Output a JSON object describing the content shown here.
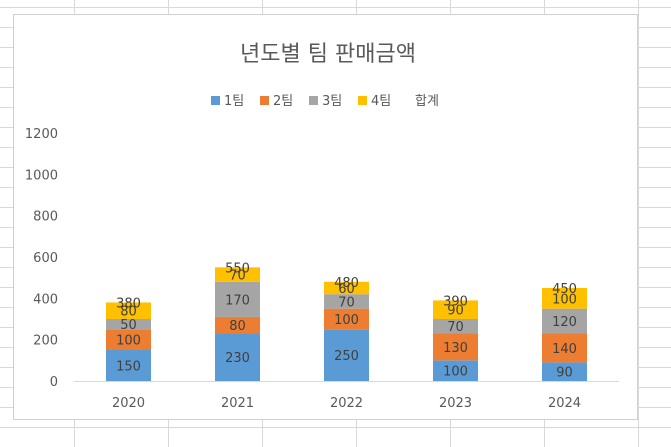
{
  "chart_data": {
    "type": "bar",
    "stacked": true,
    "title": "년도별 팀 판매금액",
    "categories": [
      "2020",
      "2021",
      "2022",
      "2023",
      "2024"
    ],
    "series": [
      {
        "name": "1팀",
        "color": "#5b9bd5",
        "values": [
          150,
          230,
          250,
          100,
          90
        ]
      },
      {
        "name": "2팀",
        "color": "#ed7d31",
        "values": [
          100,
          80,
          100,
          130,
          140
        ]
      },
      {
        "name": "3팀",
        "color": "#a5a5a5",
        "values": [
          50,
          170,
          70,
          70,
          120
        ]
      },
      {
        "name": "4팀",
        "color": "#ffc000",
        "values": [
          80,
          70,
          60,
          90,
          100
        ]
      }
    ],
    "totals": {
      "name": "합계",
      "values": [
        380,
        550,
        480,
        390,
        450
      ]
    },
    "ylim": [
      0,
      1200
    ],
    "yticks": [
      "0",
      "200",
      "400",
      "600",
      "800",
      "1000",
      "1200"
    ],
    "xlabel": "",
    "ylabel": "",
    "legend_position": "top",
    "grid": false
  }
}
